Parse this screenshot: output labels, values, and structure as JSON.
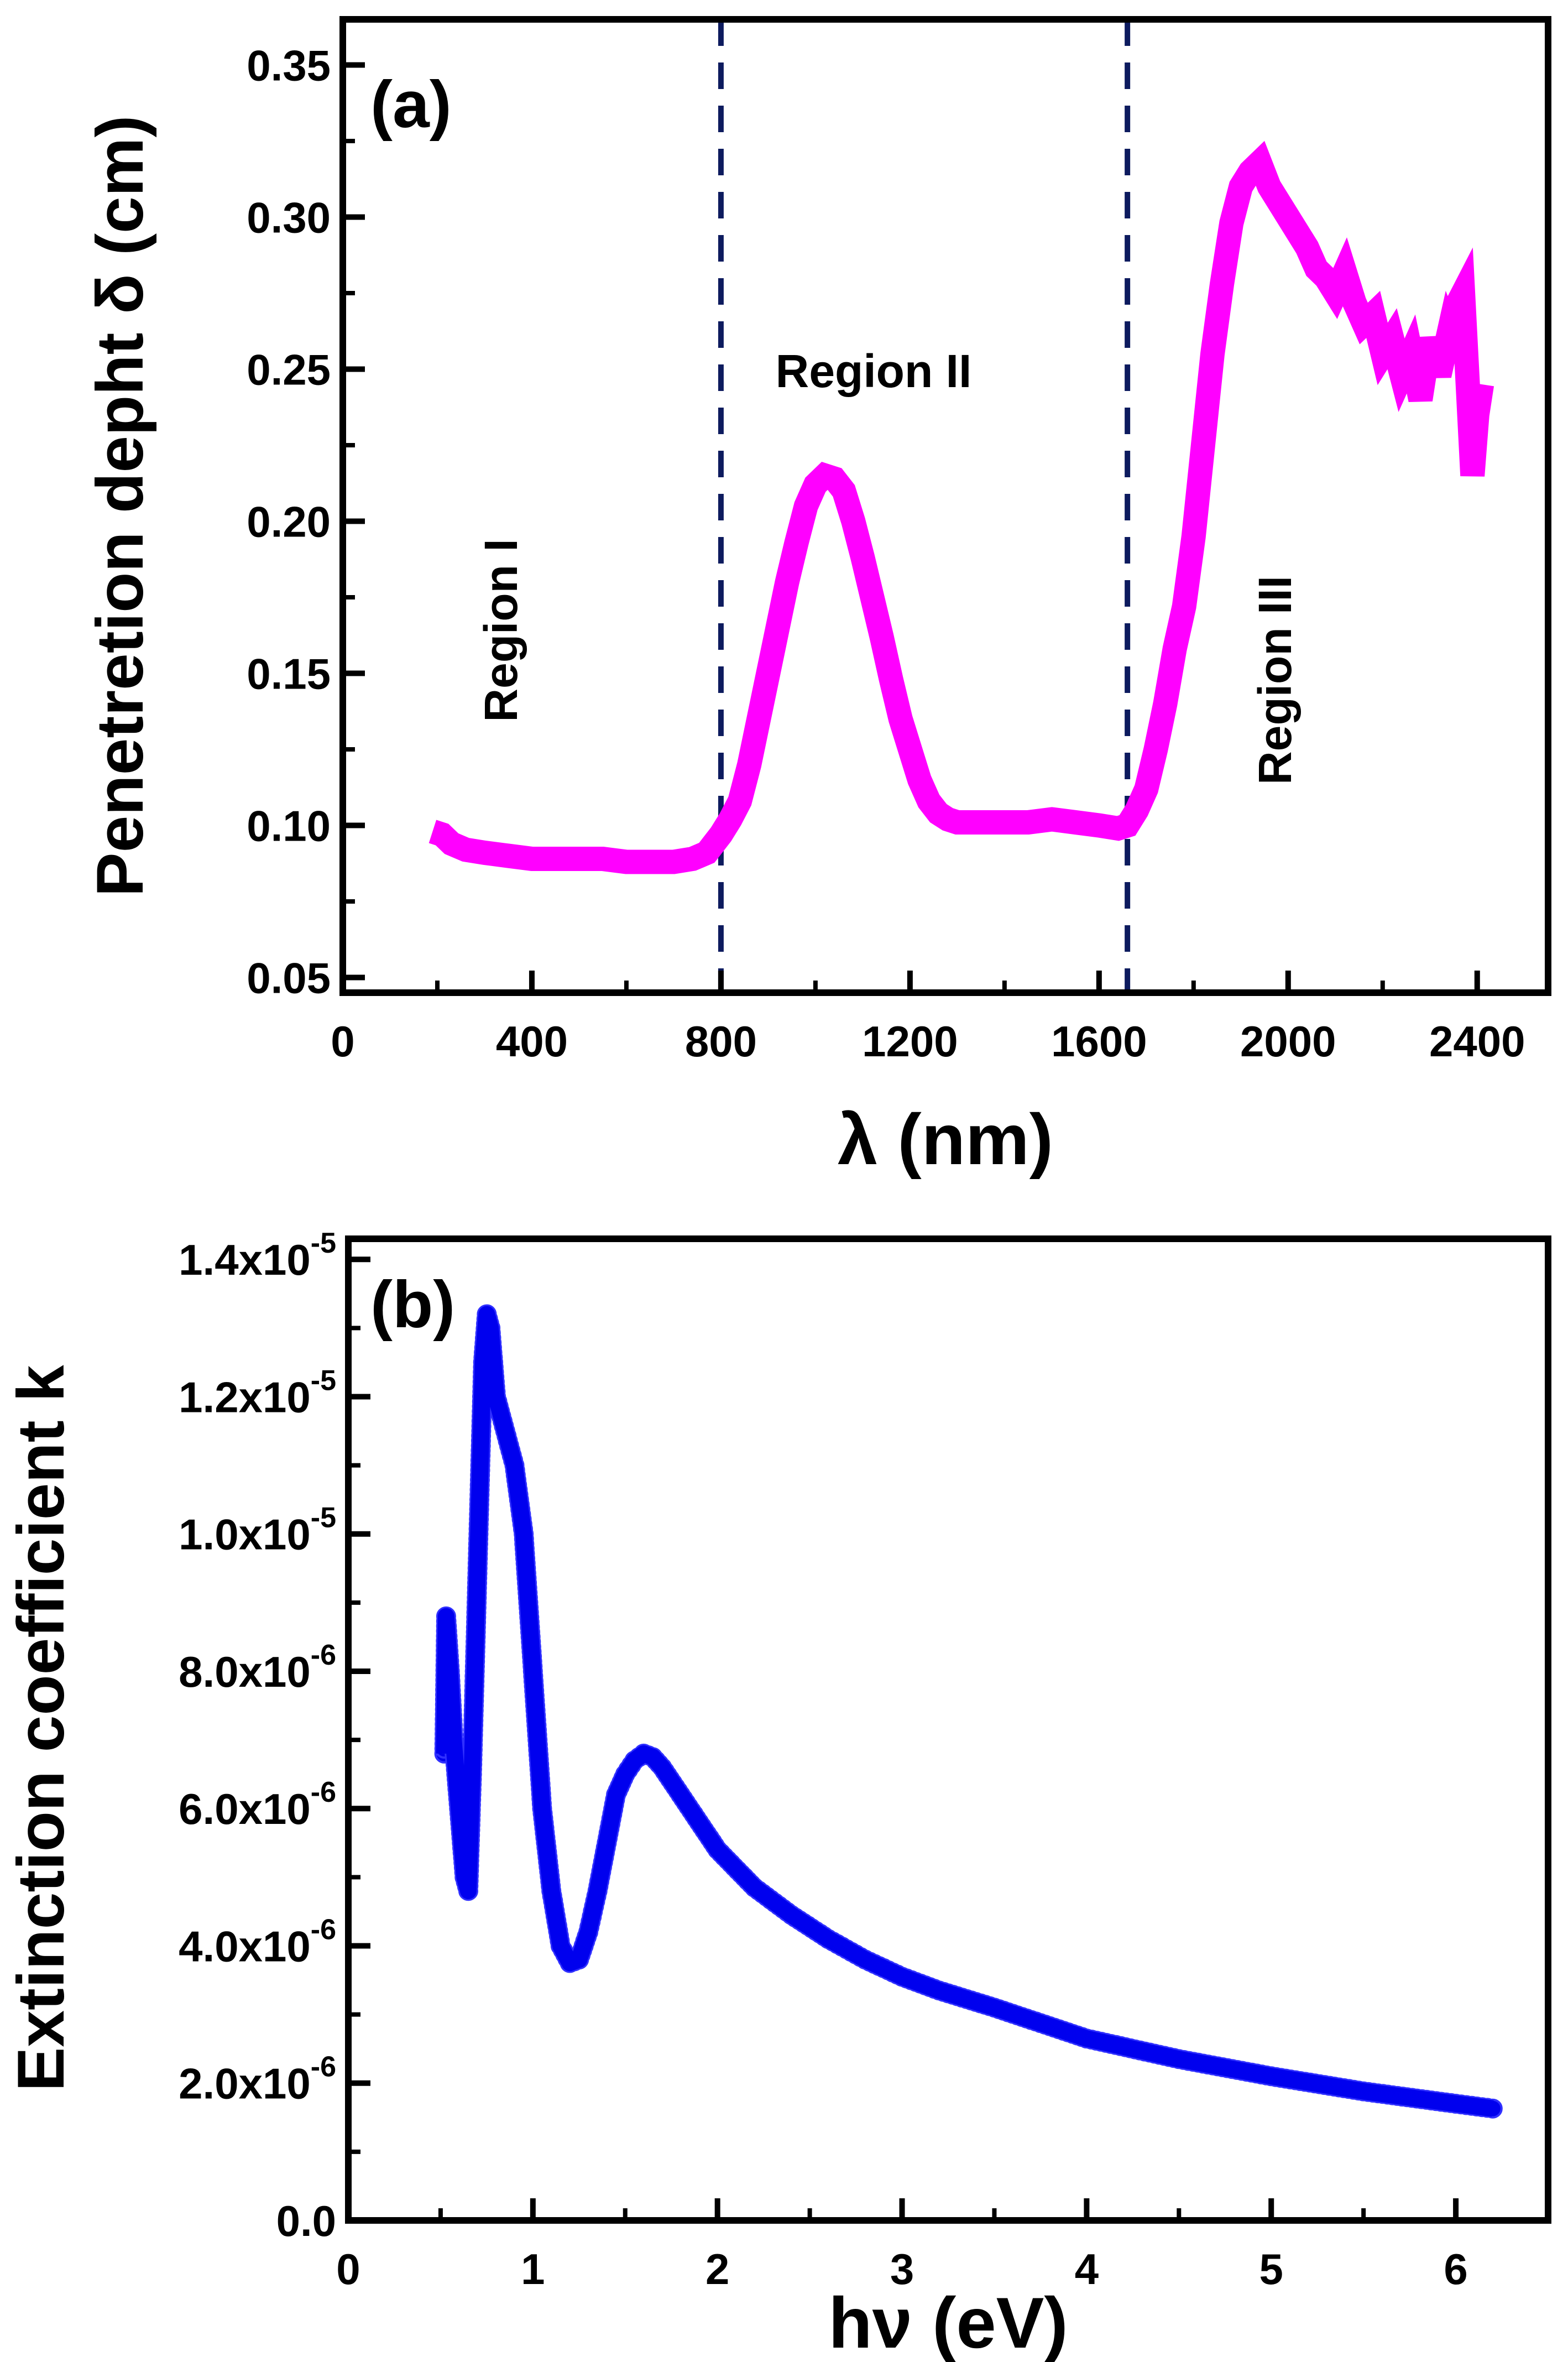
{
  "chart_data": [
    {
      "type": "line",
      "panel_label": "(a)",
      "xlabel": "λ (nm)",
      "ylabel": "Penetretion depht  δ (cm)",
      "xlim": [
        0,
        2550
      ],
      "ylim": [
        0.045,
        0.365
      ],
      "xticks": [
        0,
        400,
        800,
        1200,
        1600,
        2000,
        2400
      ],
      "xtick_labels": [
        "0",
        "400",
        "800",
        "1200",
        "1600",
        "2000",
        "2400"
      ],
      "yticks": [
        0.05,
        0.1,
        0.15,
        0.2,
        0.25,
        0.3,
        0.35
      ],
      "ytick_labels": [
        "0.05",
        "0.10",
        "0.15",
        "0.20",
        "0.25",
        "0.30",
        "0.35"
      ],
      "grid": false,
      "color": "#ff00ff",
      "vlines": [
        800,
        1660
      ],
      "vline_color": "#0d1b5e",
      "region_labels": {
        "region1": "Region I",
        "region2": "Region II",
        "region3": "Region III"
      },
      "series": [
        {
          "name": "Penetration depth",
          "x": [
            190,
            210,
            230,
            260,
            300,
            350,
            400,
            450,
            500,
            550,
            600,
            650,
            700,
            740,
            770,
            800,
            820,
            840,
            860,
            880,
            900,
            920,
            940,
            960,
            980,
            1000,
            1020,
            1040,
            1060,
            1080,
            1100,
            1120,
            1140,
            1160,
            1180,
            1200,
            1220,
            1240,
            1260,
            1280,
            1300,
            1350,
            1400,
            1450,
            1500,
            1550,
            1600,
            1640,
            1660,
            1680,
            1700,
            1720,
            1740,
            1760,
            1780,
            1800,
            1820,
            1840,
            1860,
            1880,
            1900,
            1920,
            1940,
            1960,
            1980,
            2000,
            2020,
            2040,
            2060,
            2080,
            2100,
            2120,
            2140,
            2160,
            2180,
            2200,
            2220,
            2240,
            2260,
            2280,
            2300,
            2320,
            2340,
            2350,
            2360,
            2370,
            2380,
            2390,
            2400,
            2410
          ],
          "y": [
            0.098,
            0.097,
            0.094,
            0.092,
            0.091,
            0.09,
            0.089,
            0.089,
            0.089,
            0.089,
            0.088,
            0.088,
            0.088,
            0.089,
            0.091,
            0.097,
            0.102,
            0.108,
            0.12,
            0.135,
            0.15,
            0.165,
            0.18,
            0.193,
            0.205,
            0.212,
            0.215,
            0.214,
            0.21,
            0.2,
            0.188,
            0.175,
            0.162,
            0.148,
            0.135,
            0.125,
            0.115,
            0.108,
            0.104,
            0.102,
            0.101,
            0.101,
            0.101,
            0.101,
            0.102,
            0.101,
            0.1,
            0.099,
            0.1,
            0.105,
            0.112,
            0.125,
            0.14,
            0.158,
            0.172,
            0.195,
            0.225,
            0.255,
            0.278,
            0.298,
            0.31,
            0.315,
            0.318,
            0.31,
            0.305,
            0.3,
            0.295,
            0.29,
            0.283,
            0.28,
            0.275,
            0.282,
            0.272,
            0.265,
            0.268,
            0.255,
            0.26,
            0.248,
            0.255,
            0.24,
            0.26,
            0.248,
            0.262,
            0.258,
            0.272,
            0.275,
            0.245,
            0.215,
            0.235,
            0.245
          ]
        }
      ]
    },
    {
      "type": "scatter",
      "panel_label": "(b)",
      "xlabel": "hν (eV)",
      "ylabel": "Extinction coefficient k",
      "xlim": [
        0,
        6.5
      ],
      "ylim": [
        0,
        1.43e-05
      ],
      "xticks": [
        0,
        1,
        2,
        3,
        4,
        5,
        6
      ],
      "xtick_labels": [
        "0",
        "1",
        "2",
        "3",
        "4",
        "5",
        "6"
      ],
      "yticks": [
        0,
        2e-06,
        4e-06,
        6e-06,
        8e-06,
        1e-05,
        1.2e-05,
        1.4e-05
      ],
      "ytick_labels": [
        {
          "base": "0.0",
          "exp": ""
        },
        {
          "base": "2.0x10",
          "exp": "-6"
        },
        {
          "base": "4.0x10",
          "exp": "-6"
        },
        {
          "base": "6.0x10",
          "exp": "-6"
        },
        {
          "base": "8.0x10",
          "exp": "-6"
        },
        {
          "base": "1.0x10",
          "exp": "-5"
        },
        {
          "base": "1.2x10",
          "exp": "-5"
        },
        {
          "base": "1.4x10",
          "exp": "-5"
        }
      ],
      "grid": false,
      "color": "#0000ee",
      "series": [
        {
          "name": "Extinction coefficient",
          "x": [
            0.52,
            0.53,
            0.55,
            0.57,
            0.6,
            0.63,
            0.65,
            0.67,
            0.69,
            0.71,
            0.73,
            0.75,
            0.77,
            0.8,
            0.85,
            0.9,
            0.95,
            1.0,
            1.05,
            1.1,
            1.15,
            1.2,
            1.25,
            1.3,
            1.35,
            1.4,
            1.45,
            1.5,
            1.55,
            1.6,
            1.65,
            1.7,
            1.8,
            1.9,
            2.0,
            2.2,
            2.4,
            2.6,
            2.8,
            3.0,
            3.2,
            3.5,
            4.0,
            4.5,
            5.0,
            5.5,
            6.0,
            6.2
          ],
          "y": [
            6.8e-06,
            8.8e-06,
            8e-06,
            7e-06,
            6e-06,
            5e-06,
            4.8e-06,
            6.5e-06,
            8.5e-06,
            1.05e-05,
            1.25e-05,
            1.32e-05,
            1.3e-05,
            1.2e-05,
            1.15e-05,
            1.1e-05,
            1e-05,
            8e-06,
            6e-06,
            4.8e-06,
            4e-06,
            3.75e-06,
            3.8e-06,
            4.2e-06,
            4.8e-06,
            5.5e-06,
            6.2e-06,
            6.5e-06,
            6.7e-06,
            6.8e-06,
            6.75e-06,
            6.6e-06,
            6.2e-06,
            5.8e-06,
            5.4e-06,
            4.85e-06,
            4.45e-06,
            4.1e-06,
            3.8e-06,
            3.55e-06,
            3.35e-06,
            3.1e-06,
            2.65e-06,
            2.35e-06,
            2.1e-06,
            1.88e-06,
            1.7e-06,
            1.63e-06
          ]
        }
      ]
    }
  ]
}
